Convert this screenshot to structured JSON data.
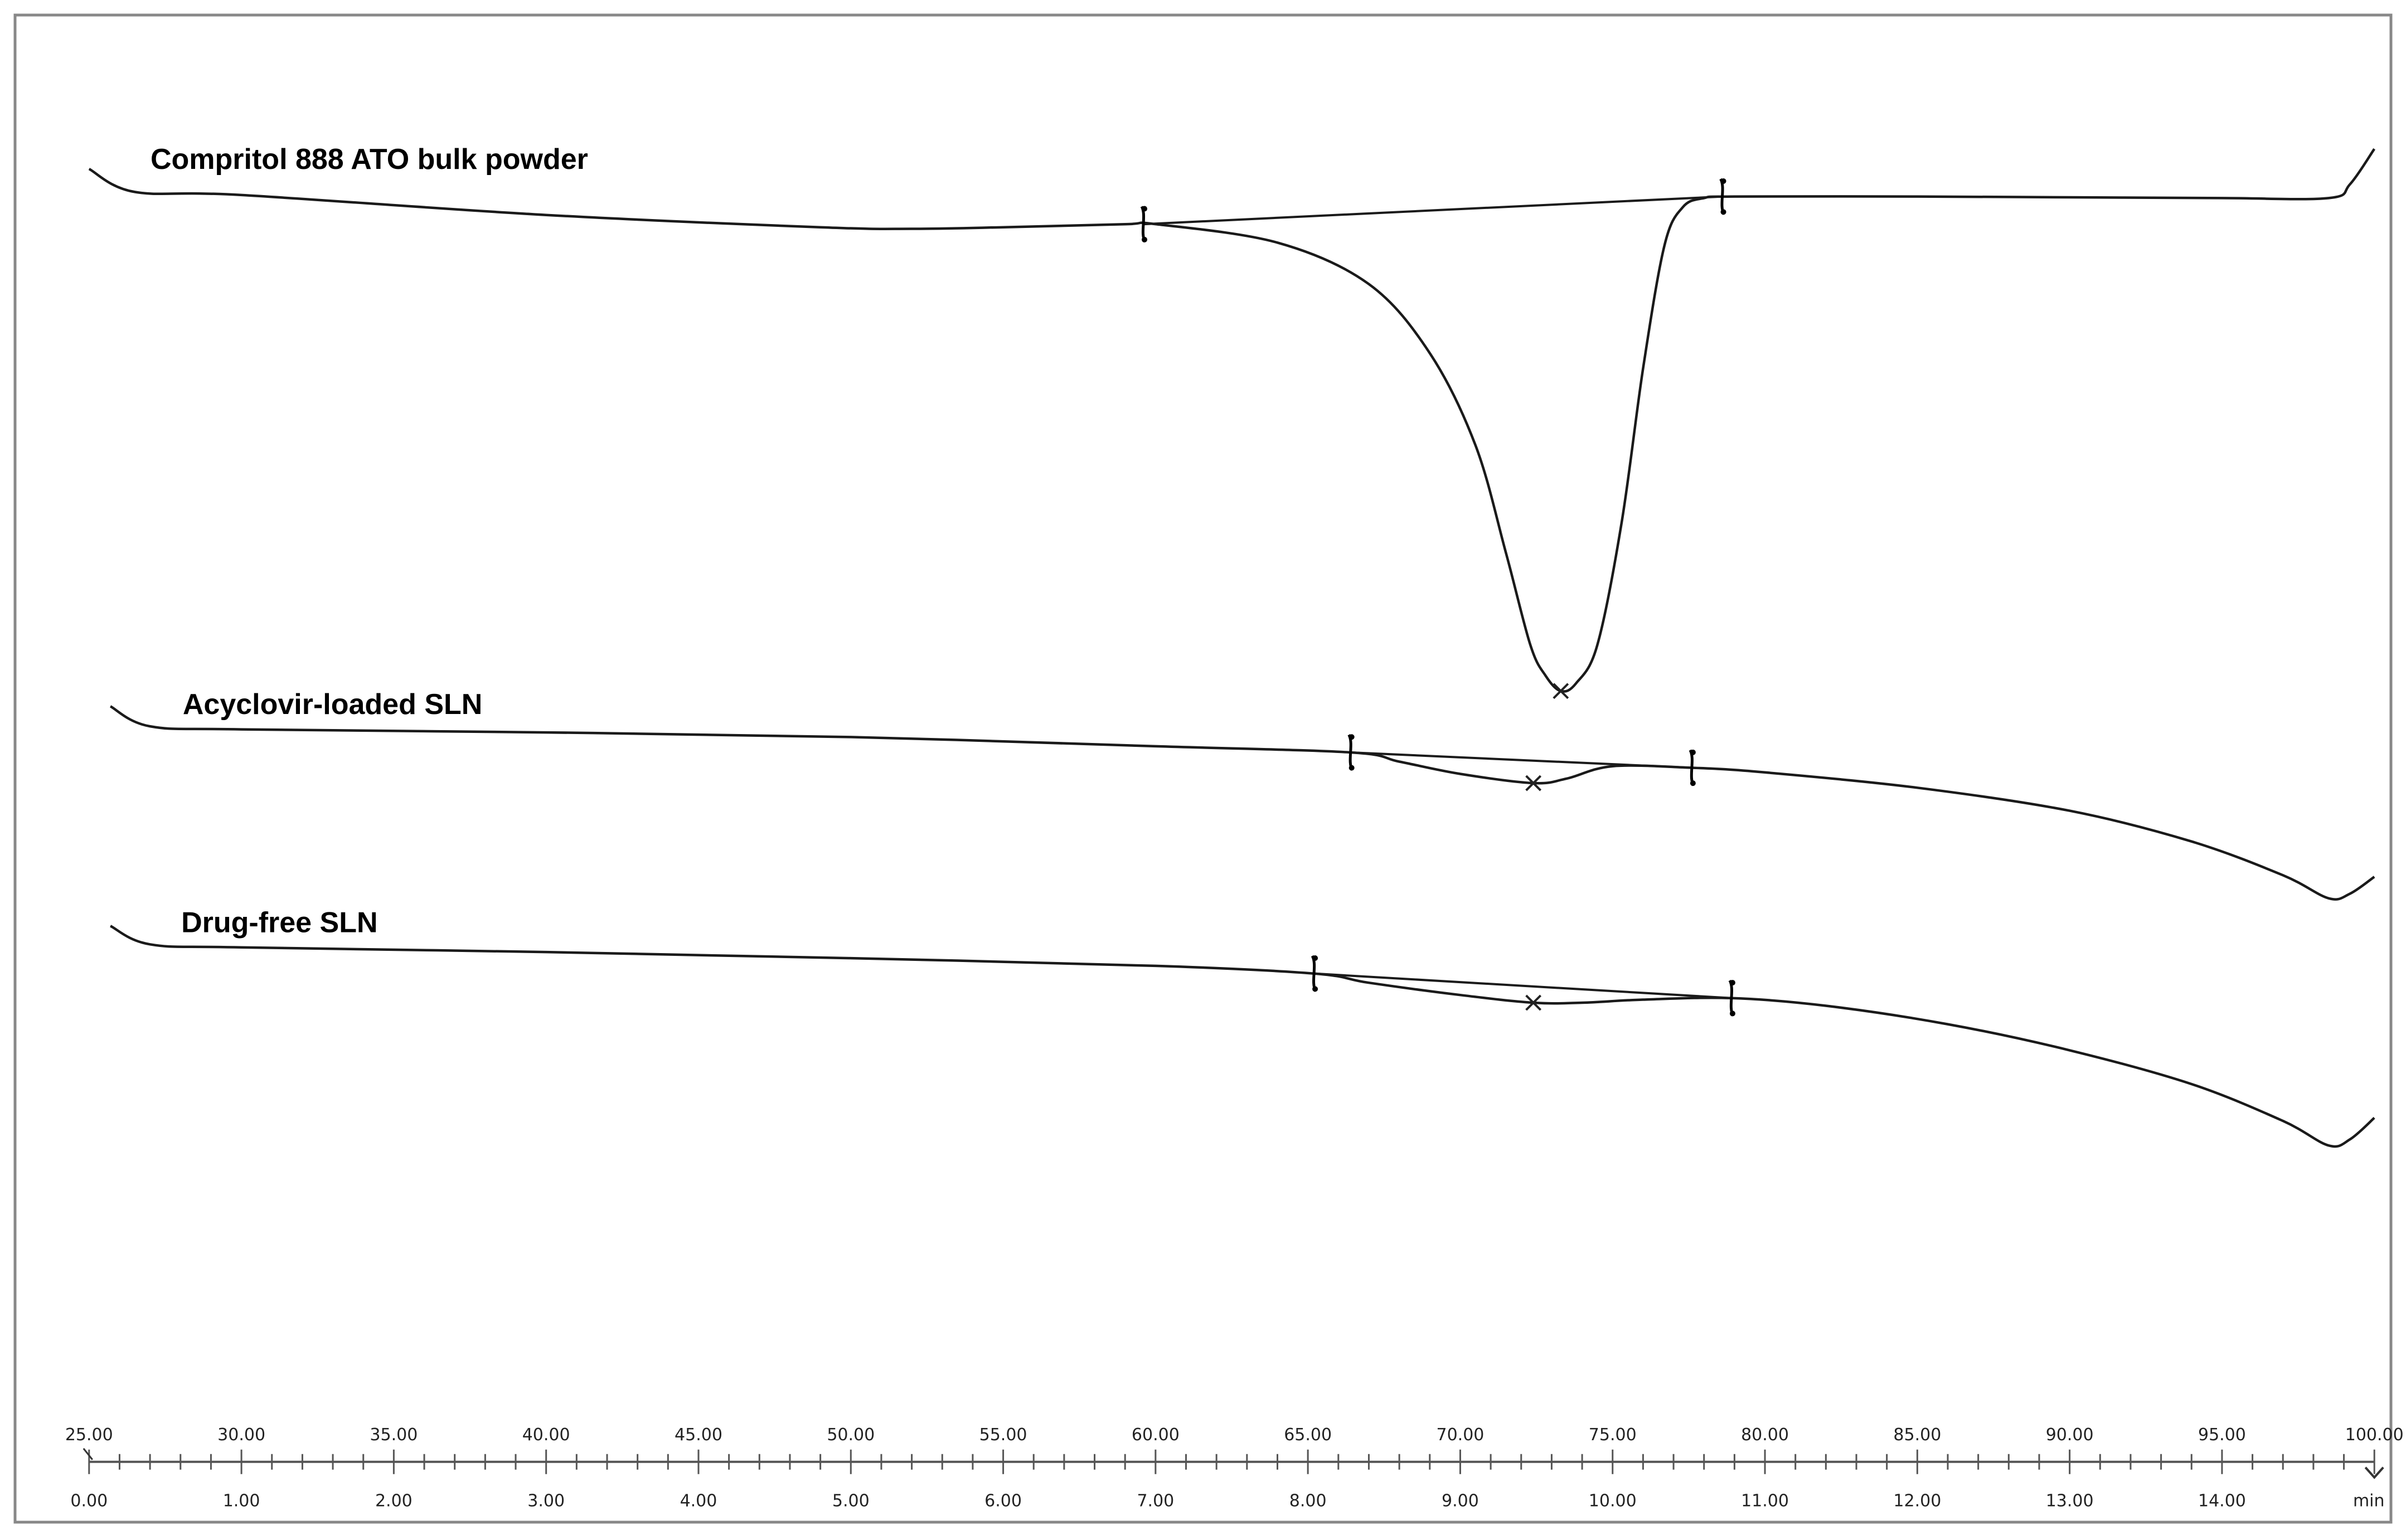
{
  "chart_data": {
    "type": "line",
    "title": "",
    "xlabel": "",
    "ylabel": "",
    "grid": false,
    "axes": {
      "temperature": {
        "ticks": [
          "25.00",
          "30.00",
          "35.00",
          "40.00",
          "45.00",
          "50.00",
          "55.00",
          "60.00",
          "65.00",
          "70.00",
          "75.00",
          "80.00",
          "85.00",
          "90.00",
          "95.00",
          "100.00"
        ],
        "range": [
          25,
          100
        ]
      },
      "time": {
        "ticks": [
          "0.00",
          "1.00",
          "2.00",
          "3.00",
          "4.00",
          "5.00",
          "6.00",
          "7.00",
          "8.00",
          "9.00",
          "10.00",
          "11.00",
          "12.00",
          "13.00",
          "14.00"
        ],
        "unit": "min",
        "range": [
          0,
          15
        ]
      }
    },
    "series": [
      {
        "name": "Compritol 888 ATO bulk powder",
        "x": [
          25.0,
          26.5,
          30.0,
          40.0,
          49.0,
          52.0,
          55.0,
          59.0,
          60.0,
          64.0,
          67.0,
          69.0,
          70.5,
          71.5,
          72.3,
          72.8,
          73.3,
          73.8,
          74.5,
          75.3,
          76.0,
          76.7,
          77.3,
          78.0,
          79.0,
          85.0,
          90.0,
          95.0,
          98.5,
          99.2,
          100.0
        ],
        "y": [
          110,
          125,
          127,
          140,
          148,
          149,
          148,
          146,
          146,
          158,
          185,
          230,
          290,
          360,
          420,
          440,
          450,
          445,
          420,
          340,
          240,
          160,
          135,
          129,
          128,
          128,
          128.5,
          129,
          129,
          120,
          97
        ],
        "baseline": {
          "x": [
            59.6,
            78.6
          ],
          "y": [
            146,
            128
          ]
        },
        "onset": 59.6,
        "peak": 73.3,
        "endset": 78.6
      },
      {
        "name": "Acyclovir-loaded SLN",
        "x": [
          25.7,
          27.0,
          30.0,
          40.0,
          50.0,
          60.0,
          66.4,
          68.0,
          70.0,
          72.4,
          73.5,
          75.0,
          77.6,
          80.0,
          85.0,
          90.0,
          94.0,
          97.0,
          98.5,
          99.2,
          100.0
        ],
        "y": [
          460,
          473,
          475,
          477,
          480,
          486,
          490,
          496,
          504,
          510,
          507,
          499,
          500,
          503,
          513,
          528,
          548,
          570,
          585,
          582,
          571
        ],
        "baseline": {
          "x": [
            66.4,
            77.6
          ],
          "y": [
            490,
            500
          ]
        },
        "onset": 66.4,
        "peak": 72.4,
        "endset": 77.6
      },
      {
        "name": "Drug-free SLN",
        "x": [
          25.7,
          27.0,
          30.0,
          40.0,
          50.0,
          60.0,
          65.2,
          67.0,
          70.0,
          72.4,
          74.0,
          76.0,
          78.9,
          82.0,
          86.0,
          90.0,
          94.0,
          97.0,
          98.5,
          99.2,
          100.0
        ],
        "y": [
          603,
          615,
          617,
          620,
          624,
          629,
          634,
          640,
          648,
          653,
          653,
          651,
          650,
          655,
          667,
          684,
          706,
          730,
          746,
          742,
          728
        ],
        "baseline": {
          "x": [
            65.2,
            78.9
          ],
          "y": [
            634,
            650
          ]
        },
        "onset": 65.2,
        "peak": 72.4,
        "endset": 78.9
      }
    ]
  }
}
